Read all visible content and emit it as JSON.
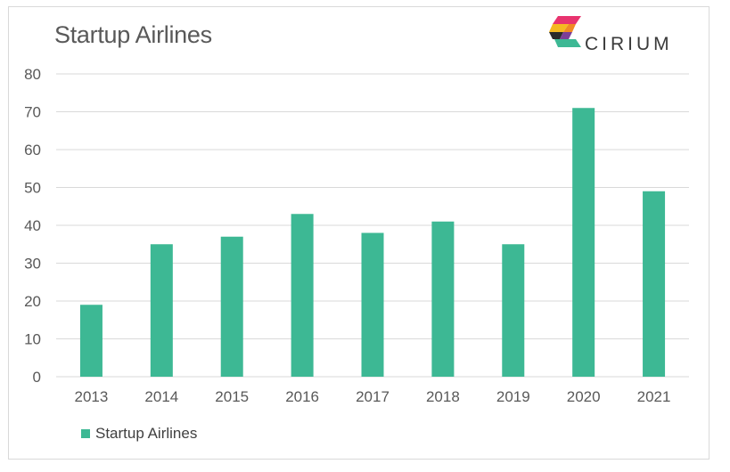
{
  "chart_data": {
    "type": "bar",
    "title": "Startup Airlines",
    "categories": [
      "2013",
      "2014",
      "2015",
      "2016",
      "2017",
      "2018",
      "2019",
      "2020",
      "2021"
    ],
    "series": [
      {
        "name": "Startup Airlines",
        "values": [
          19,
          35,
          37,
          43,
          38,
          41,
          35,
          71,
          49
        ]
      }
    ],
    "ylim": [
      0,
      80
    ],
    "yticks": [
      0,
      10,
      20,
      30,
      40,
      50,
      60,
      70,
      80
    ],
    "xlabel": "",
    "ylabel": "",
    "grid": true,
    "legend_position": "bottom-left",
    "bar_color": "#3db894"
  },
  "logo": {
    "text": "CIRIUM"
  }
}
